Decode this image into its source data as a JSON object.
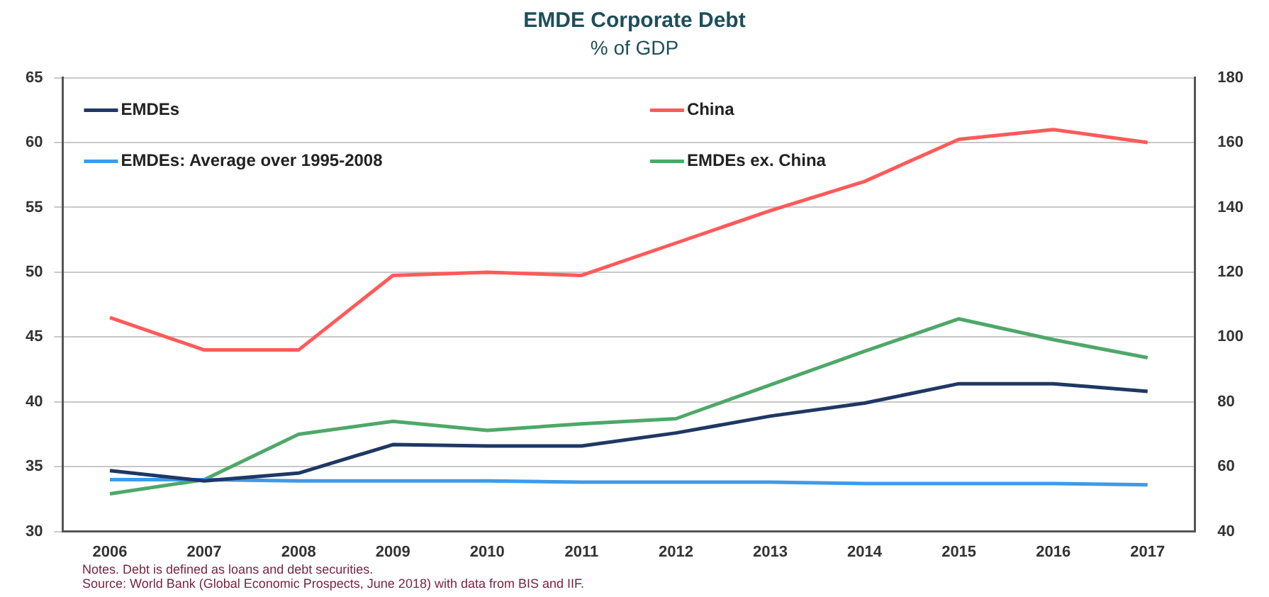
{
  "chart_data": {
    "type": "line",
    "title": "EMDE Corporate Debt",
    "subtitle": "% of GDP",
    "categories": [
      "2006",
      "2007",
      "2008",
      "2009",
      "2010",
      "2011",
      "2012",
      "2013",
      "2014",
      "2015",
      "2016",
      "2017"
    ],
    "series": [
      {
        "name": "EMDEs",
        "color": "#1f3864",
        "values": [
          34.7,
          33.9,
          34.5,
          36.7,
          36.6,
          36.6,
          37.6,
          38.9,
          39.9,
          41.4,
          41.4,
          40.8
        ]
      },
      {
        "name": "China",
        "color": "#ff5a5a",
        "axis": "y2",
        "values": [
          106,
          96,
          96,
          119,
          120,
          119,
          129,
          139,
          148,
          161,
          164,
          160
        ]
      },
      {
        "name": "EMDEs: Average over 1995-2008",
        "color": "#3d9be9",
        "values": [
          34.0,
          34.0,
          33.9,
          33.9,
          33.9,
          33.8,
          33.8,
          33.8,
          33.7,
          33.7,
          33.7,
          33.6
        ]
      },
      {
        "name": "EMDEs ex. China",
        "color": "#4ea868",
        "values": [
          32.9,
          34.0,
          37.5,
          38.5,
          37.8,
          38.3,
          38.7,
          41.3,
          43.9,
          46.4,
          44.8,
          43.4
        ]
      }
    ],
    "ylim": [
      30,
      65
    ],
    "yticks": [
      30,
      35,
      40,
      45,
      50,
      55,
      60,
      65
    ],
    "y2lim": [
      40,
      180
    ],
    "y2ticks": [
      40,
      60,
      80,
      100,
      120,
      140,
      160,
      180
    ],
    "grid": "y",
    "legend": "top left",
    "marker": "none",
    "line_style": "solid",
    "annotations": [
      "Notes. Debt is defined as loans and debt securities.",
      "Source: World Bank (Global Economic Prospects, June 2018) with data from BIS and IIF."
    ]
  }
}
